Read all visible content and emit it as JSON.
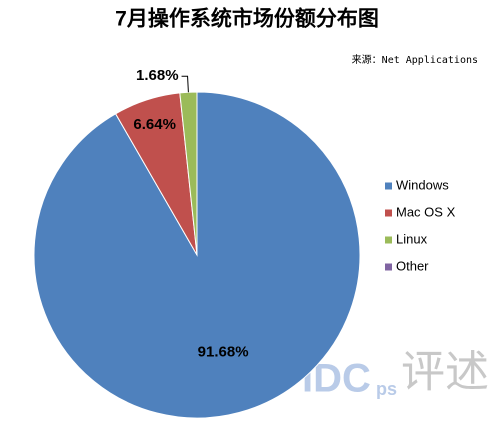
{
  "chart_data": {
    "type": "pie",
    "title": "7月操作系统市场份额分布图",
    "subtitle": "来源：Net Applications",
    "categories": [
      "Windows",
      "Mac OS X",
      "Linux",
      "Other"
    ],
    "values": [
      91.68,
      6.64,
      1.68,
      0
    ],
    "value_labels": [
      "91.68%",
      "6.64%",
      "1.68%",
      null
    ],
    "colors": [
      "#4f81bd",
      "#c0504d",
      "#9bbb59",
      "#8064a2"
    ],
    "legend": "right",
    "watermark": [
      "IDC",
      "ps",
      "评述"
    ]
  }
}
